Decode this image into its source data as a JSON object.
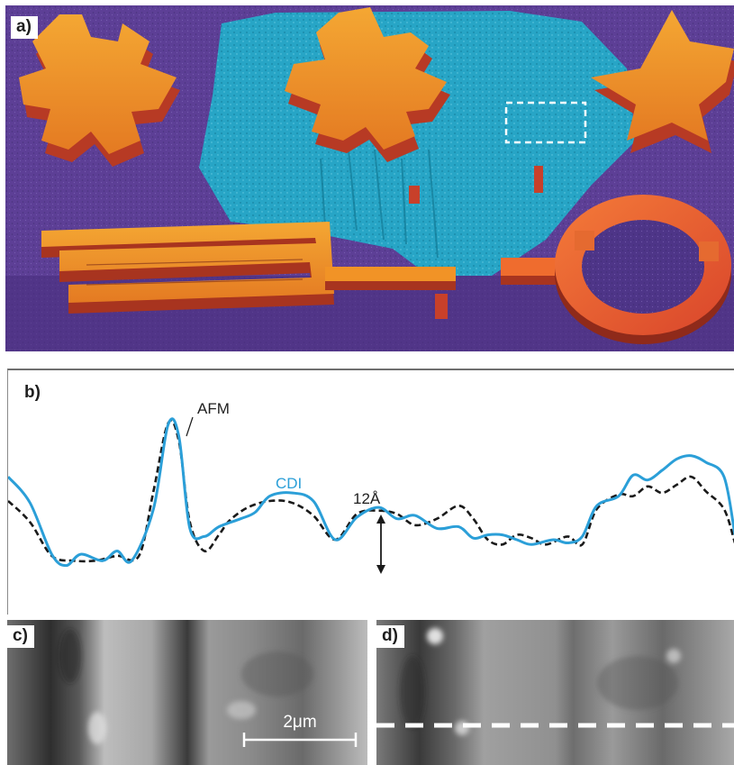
{
  "figure": {
    "panel_a": {
      "label": "a)"
    },
    "panel_b": {
      "label": "b)"
    },
    "panel_c": {
      "label": "c)",
      "scale_bar_label": "2μm"
    },
    "panel_d": {
      "label": "d)"
    }
  },
  "chart_data": {
    "type": "line",
    "title": "",
    "xlabel": "",
    "ylabel": "",
    "legend": "inline labels",
    "grid": false,
    "x_range": [
      0,
      100
    ],
    "y_range": [
      -2,
      10
    ],
    "annotations": [
      {
        "text": "AFM",
        "points_to_series": "AFM"
      },
      {
        "text": "CDI",
        "color": "#2b9fd8"
      },
      {
        "text": "12Å",
        "type": "double-arrow"
      }
    ],
    "series": [
      {
        "name": "AFM",
        "style": "dashed",
        "color": "#1a1a1a",
        "x": [
          0,
          3,
          6,
          9,
          12,
          15,
          18,
          20,
          22,
          23.5,
          25,
          27,
          29,
          30.5,
          33,
          36,
          39,
          42,
          45,
          48,
          51,
          53.5,
          56,
          59,
          62,
          64,
          66,
          68,
          70,
          72,
          74,
          77,
          79,
          81,
          84,
          86,
          88,
          90,
          92,
          94,
          96,
          98.5,
          100
        ],
        "y": [
          4.7,
          3.4,
          1.3,
          1.0,
          1.0,
          1.3,
          1.3,
          5.3,
          9.5,
          8.4,
          3.4,
          1.6,
          2.6,
          3.5,
          4.3,
          4.7,
          4.6,
          3.8,
          2.3,
          3.9,
          4.1,
          3.9,
          3.2,
          3.6,
          4.4,
          3.6,
          2.3,
          2.0,
          2.6,
          2.4,
          2.0,
          2.5,
          2.0,
          4.2,
          5.1,
          5.0,
          5.6,
          5.2,
          5.7,
          6.2,
          5.3,
          4.2,
          2.1
        ]
      },
      {
        "name": "CDI",
        "style": "solid",
        "color": "#2b9fd8",
        "x": [
          0,
          3,
          6,
          8,
          10,
          13,
          15,
          17,
          20,
          22,
          23.5,
          25,
          27,
          29,
          32,
          34,
          36,
          39,
          42,
          45,
          48,
          51,
          53.5,
          56,
          59,
          62,
          64,
          66,
          68,
          70,
          72,
          75,
          77,
          79,
          81,
          84,
          86,
          88,
          90,
          92,
          94,
          96,
          98.5,
          100
        ],
        "y": [
          6.2,
          4.6,
          1.4,
          0.7,
          1.4,
          1.0,
          1.6,
          1.0,
          4.2,
          9.4,
          8.7,
          3.0,
          2.5,
          3.1,
          3.6,
          4.0,
          5.0,
          5.2,
          4.7,
          2.3,
          3.7,
          4.3,
          3.6,
          3.8,
          3.0,
          3.1,
          2.4,
          2.6,
          2.6,
          2.3,
          2.0,
          2.3,
          2.1,
          2.5,
          4.4,
          5.0,
          6.3,
          6.0,
          6.6,
          7.3,
          7.5,
          7.1,
          6.2,
          2.6
        ]
      }
    ]
  },
  "colors": {
    "substrate_purple": "#5d3f96",
    "region_cyan": "#27a5c6",
    "feature_orange": "#f19326",
    "feature_edge": "#d4452a",
    "cdi_blue": "#2b9fd8",
    "afm_black": "#1a1a1a"
  }
}
